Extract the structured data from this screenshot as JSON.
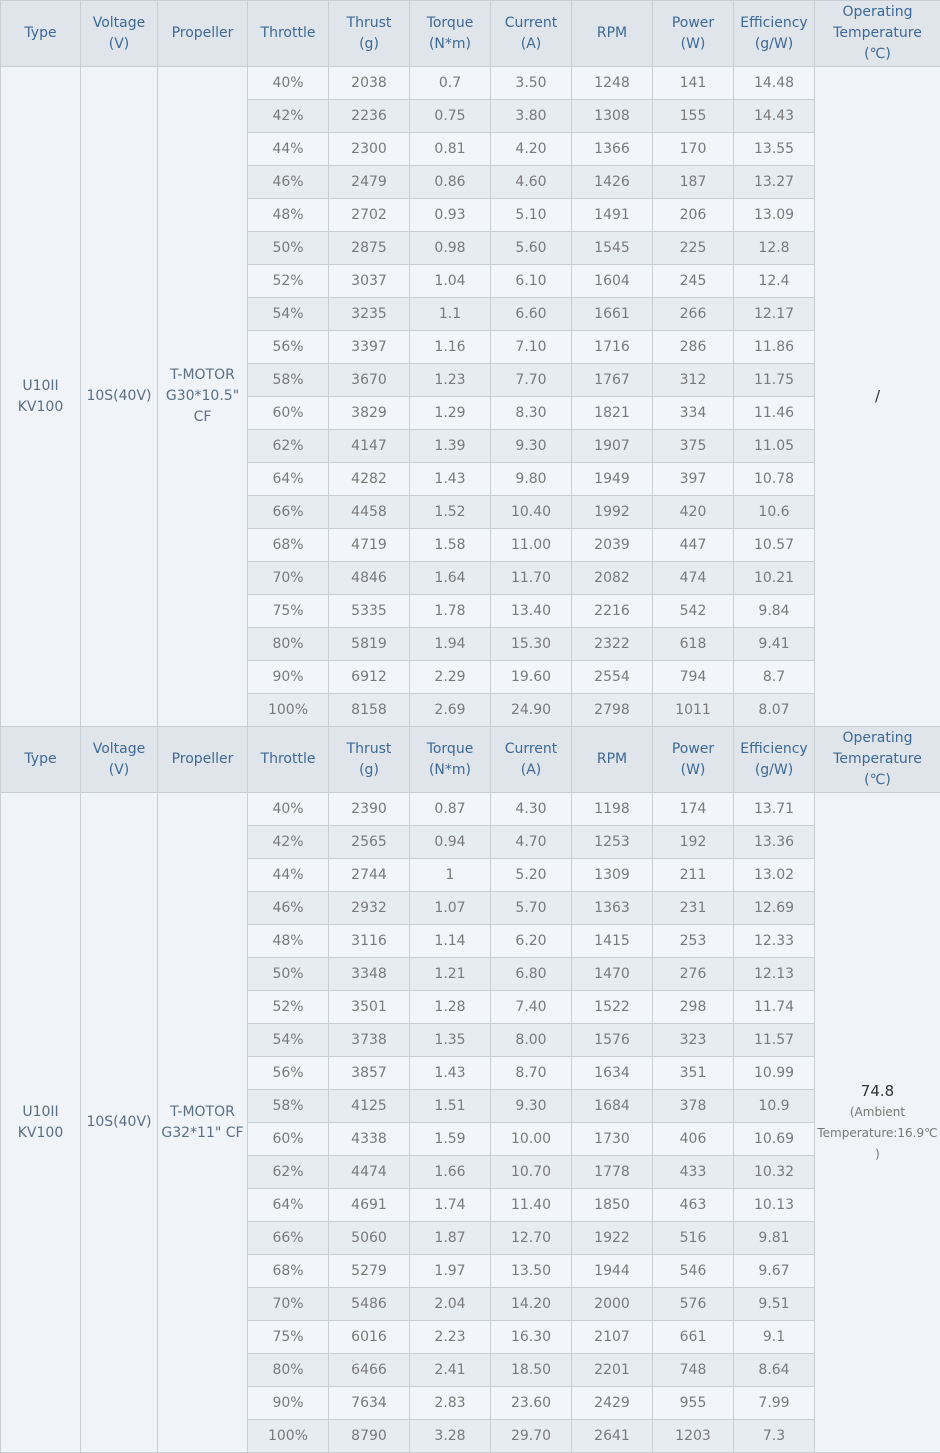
{
  "headers": [
    "Type",
    "Voltage\n(V)",
    "Propeller",
    "Throttle",
    "Thrust\n(g)",
    "Torque\n(N*m)",
    "Current\n(A)",
    "RPM",
    "Power\n(W)",
    "Efficiency\n(g/W)",
    "Operating\nTemperature\n(℃)"
  ],
  "tables": [
    {
      "type": "U10II KV100",
      "voltage": "10S(40V)",
      "propeller": "T-MOTOR G30*10.5\" CF",
      "temperature": "/",
      "temperature_note": "",
      "rows": [
        [
          "40%",
          "2038",
          "0.7",
          "3.50",
          "1248",
          "141",
          "14.48"
        ],
        [
          "42%",
          "2236",
          "0.75",
          "3.80",
          "1308",
          "155",
          "14.43"
        ],
        [
          "44%",
          "2300",
          "0.81",
          "4.20",
          "1366",
          "170",
          "13.55"
        ],
        [
          "46%",
          "2479",
          "0.86",
          "4.60",
          "1426",
          "187",
          "13.27"
        ],
        [
          "48%",
          "2702",
          "0.93",
          "5.10",
          "1491",
          "206",
          "13.09"
        ],
        [
          "50%",
          "2875",
          "0.98",
          "5.60",
          "1545",
          "225",
          "12.8"
        ],
        [
          "52%",
          "3037",
          "1.04",
          "6.10",
          "1604",
          "245",
          "12.4"
        ],
        [
          "54%",
          "3235",
          "1.1",
          "6.60",
          "1661",
          "266",
          "12.17"
        ],
        [
          "56%",
          "3397",
          "1.16",
          "7.10",
          "1716",
          "286",
          "11.86"
        ],
        [
          "58%",
          "3670",
          "1.23",
          "7.70",
          "1767",
          "312",
          "11.75"
        ],
        [
          "60%",
          "3829",
          "1.29",
          "8.30",
          "1821",
          "334",
          "11.46"
        ],
        [
          "62%",
          "4147",
          "1.39",
          "9.30",
          "1907",
          "375",
          "11.05"
        ],
        [
          "64%",
          "4282",
          "1.43",
          "9.80",
          "1949",
          "397",
          "10.78"
        ],
        [
          "66%",
          "4458",
          "1.52",
          "10.40",
          "1992",
          "420",
          "10.6"
        ],
        [
          "68%",
          "4719",
          "1.58",
          "11.00",
          "2039",
          "447",
          "10.57"
        ],
        [
          "70%",
          "4846",
          "1.64",
          "11.70",
          "2082",
          "474",
          "10.21"
        ],
        [
          "75%",
          "5335",
          "1.78",
          "13.40",
          "2216",
          "542",
          "9.84"
        ],
        [
          "80%",
          "5819",
          "1.94",
          "15.30",
          "2322",
          "618",
          "9.41"
        ],
        [
          "90%",
          "6912",
          "2.29",
          "19.60",
          "2554",
          "794",
          "8.7"
        ],
        [
          "100%",
          "8158",
          "2.69",
          "24.90",
          "2798",
          "1011",
          "8.07"
        ]
      ]
    },
    {
      "type": "U10II KV100",
      "voltage": "10S(40V)",
      "propeller": "T-MOTOR G32*11\" CF",
      "temperature": "74.8",
      "temperature_note": "(Ambient Temperature:16.9℃ )",
      "rows": [
        [
          "40%",
          "2390",
          "0.87",
          "4.30",
          "1198",
          "174",
          "13.71"
        ],
        [
          "42%",
          "2565",
          "0.94",
          "4.70",
          "1253",
          "192",
          "13.36"
        ],
        [
          "44%",
          "2744",
          "1",
          "5.20",
          "1309",
          "211",
          "13.02"
        ],
        [
          "46%",
          "2932",
          "1.07",
          "5.70",
          "1363",
          "231",
          "12.69"
        ],
        [
          "48%",
          "3116",
          "1.14",
          "6.20",
          "1415",
          "253",
          "12.33"
        ],
        [
          "50%",
          "3348",
          "1.21",
          "6.80",
          "1470",
          "276",
          "12.13"
        ],
        [
          "52%",
          "3501",
          "1.28",
          "7.40",
          "1522",
          "298",
          "11.74"
        ],
        [
          "54%",
          "3738",
          "1.35",
          "8.00",
          "1576",
          "323",
          "11.57"
        ],
        [
          "56%",
          "3857",
          "1.43",
          "8.70",
          "1634",
          "351",
          "10.99"
        ],
        [
          "58%",
          "4125",
          "1.51",
          "9.30",
          "1684",
          "378",
          "10.9"
        ],
        [
          "60%",
          "4338",
          "1.59",
          "10.00",
          "1730",
          "406",
          "10.69"
        ],
        [
          "62%",
          "4474",
          "1.66",
          "10.70",
          "1778",
          "433",
          "10.32"
        ],
        [
          "64%",
          "4691",
          "1.74",
          "11.40",
          "1850",
          "463",
          "10.13"
        ],
        [
          "66%",
          "5060",
          "1.87",
          "12.70",
          "1922",
          "516",
          "9.81"
        ],
        [
          "68%",
          "5279",
          "1.97",
          "13.50",
          "1944",
          "546",
          "9.67"
        ],
        [
          "70%",
          "5486",
          "2.04",
          "14.20",
          "2000",
          "576",
          "9.51"
        ],
        [
          "75%",
          "6016",
          "2.23",
          "16.30",
          "2107",
          "661",
          "9.1"
        ],
        [
          "80%",
          "6466",
          "2.41",
          "18.50",
          "2201",
          "748",
          "8.64"
        ],
        [
          "90%",
          "7634",
          "2.83",
          "23.60",
          "2429",
          "955",
          "7.99"
        ],
        [
          "100%",
          "8790",
          "3.28",
          "29.70",
          "2641",
          "1203",
          "7.3"
        ]
      ]
    }
  ]
}
